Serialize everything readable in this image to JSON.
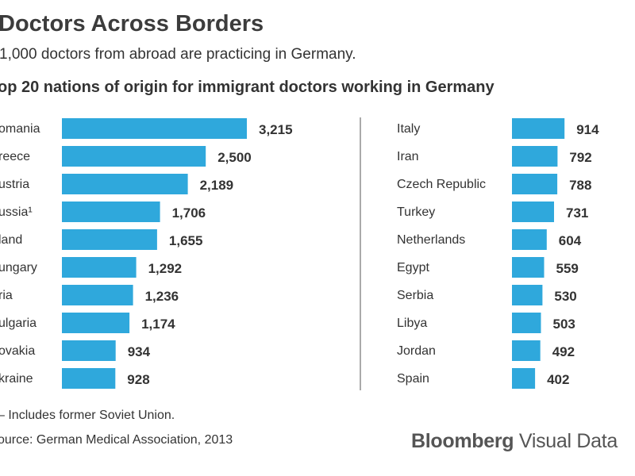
{
  "header": {
    "title": "Doctors Across Borders",
    "subtitle": "1,000 doctors from abroad are practicing in Germany."
  },
  "footer": {
    "footnote": "– Includes former Soviet Union.",
    "source": "ource: German Medical Association, 2013",
    "logo_bold": "Bloomberg",
    "logo_light": " Visual Data"
  },
  "colors": {
    "bar": "#2fa8dc",
    "divider": "#555555",
    "label": "#333333",
    "value": "#333333"
  },
  "chart_data": {
    "type": "bar",
    "orientation": "horizontal",
    "title": "op 20 nations of origin for immigrant doctors working in Germany",
    "xlabel": "",
    "ylabel": "",
    "categories": [
      "omania",
      "reece",
      "ustria",
      "ussia¹",
      "land",
      "ungary",
      "ria",
      "ulgaria",
      "ovakia",
      "kraine",
      "Italy",
      "Iran",
      "Czech Republic",
      "Turkey",
      "Netherlands",
      "Egypt",
      "Serbia",
      "Libya",
      "Jordan",
      "Spain"
    ],
    "values": [
      3215,
      2500,
      2189,
      1706,
      1655,
      1292,
      1236,
      1174,
      934,
      928,
      914,
      792,
      788,
      731,
      604,
      559,
      530,
      503,
      492,
      402
    ],
    "value_labels": [
      "3,215",
      "2,500",
      "2,189",
      "1,706",
      "1,655",
      "1,292",
      "1,236",
      "1,174",
      "934",
      "928",
      "914",
      "792",
      "788",
      "731",
      "604",
      "559",
      "530",
      "503",
      "492",
      "402"
    ],
    "xlim": [
      0,
      3215
    ],
    "panels": [
      {
        "name": "left",
        "start": 0,
        "count": 10
      },
      {
        "name": "right",
        "start": 10,
        "count": 10
      }
    ]
  }
}
